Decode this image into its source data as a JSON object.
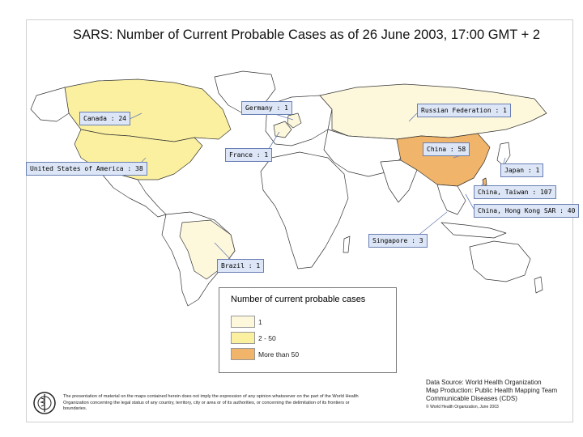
{
  "title": "SARS: Number of Current Probable Cases as of 26 June 2003, 17:00 GMT + 2",
  "callouts": [
    {
      "id": "germany",
      "label": "Germany : 1"
    },
    {
      "id": "russia",
      "label": "Russian Federation : 1"
    },
    {
      "id": "canada",
      "label": "Canada : 24"
    },
    {
      "id": "china",
      "label": "China : 58"
    },
    {
      "id": "france",
      "label": "France : 1"
    },
    {
      "id": "usa",
      "label": "United States of America : 38"
    },
    {
      "id": "japan",
      "label": "Japan : 1"
    },
    {
      "id": "taiwan",
      "label": "China, Taiwan : 107"
    },
    {
      "id": "hongkong",
      "label": "China, Hong Kong SAR : 40"
    },
    {
      "id": "singapore",
      "label": "Singapore : 3"
    },
    {
      "id": "brazil",
      "label": "Brazil : 1"
    }
  ],
  "legend": {
    "title": "Number of current probable cases",
    "items": [
      {
        "label": "1",
        "color": "#fdf8dc"
      },
      {
        "label": "2 - 50",
        "color": "#fbf0a0"
      },
      {
        "label": "More than 50",
        "color": "#f0b46a"
      }
    ]
  },
  "disclaimer": "The presentation of material on the maps contained herein does not imply the expression of any opinion whatsoever on the part of the World Health Organization concerning the legal status of any country, territory, city or area or of its authorities, or concerning the delimitation of its frontiers or boundaries.",
  "source": {
    "line1": "Data Source: World Health Organization",
    "line2": "Map Production: Public Health Mapping Team",
    "line3": "Communicable Diseases (CDS)",
    "line4": "© World Health Organization, June 2003"
  },
  "colors": {
    "base": "#ffffff",
    "level1": "#fdf8dc",
    "level2": "#fbf0a0",
    "level3": "#f0b46a",
    "callout": "#dde6f6"
  },
  "icons": {
    "logo": "who-emblem-icon"
  }
}
